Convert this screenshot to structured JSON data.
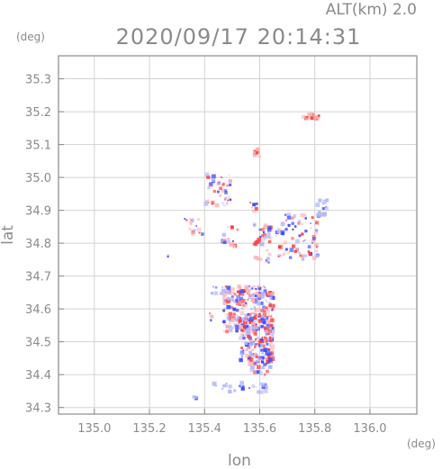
{
  "header": {
    "alt_label": "ALT(km) 2.0",
    "timestamp": "2020/09/17 20:14:31"
  },
  "axes": {
    "y_unit": "(deg)",
    "x_unit": "(deg)",
    "ylabel": "lat",
    "xlabel": "lon"
  },
  "colors": {
    "frame": "#8a8a8a",
    "grid": "#d2d2d2",
    "positive": "#ff3b3b",
    "positive_light": "#ffb3b3",
    "negative": "#3b48ff",
    "negative_light": "#b3b8ff"
  },
  "chart_data": {
    "type": "scatter",
    "xlim": [
      134.87,
      136.17
    ],
    "ylim": [
      34.28,
      35.37
    ],
    "x_ticks": [
      135.0,
      135.2,
      135.4,
      135.6,
      135.8,
      136.0
    ],
    "x_tick_labels": [
      "135.0",
      "135.2",
      "135.4",
      "135.6",
      "135.8",
      "136.0"
    ],
    "y_ticks": [
      34.3,
      34.4,
      34.5,
      34.6,
      34.7,
      34.8,
      34.9,
      35.0,
      35.1,
      35.2,
      35.3
    ],
    "y_tick_labels": [
      "34.3",
      "34.4",
      "34.5",
      "34.6",
      "34.7",
      "34.8",
      "34.9",
      "35.0",
      "35.1",
      "35.2",
      "35.3"
    ],
    "grid": true,
    "clusters": [
      {
        "lon": 135.79,
        "lat": 35.185,
        "w": 0.08,
        "h": 0.015,
        "n": 20,
        "tone": "pos"
      },
      {
        "lon": 135.59,
        "lat": 35.07,
        "w": 0.03,
        "h": 0.035,
        "n": 12,
        "tone": "pos"
      },
      {
        "lon": 135.45,
        "lat": 34.96,
        "w": 0.09,
        "h": 0.1,
        "n": 45,
        "tone": "mix"
      },
      {
        "lon": 135.36,
        "lat": 34.85,
        "w": 0.07,
        "h": 0.06,
        "n": 14,
        "tone": "mix"
      },
      {
        "lon": 135.27,
        "lat": 34.76,
        "w": 0.01,
        "h": 0.01,
        "n": 2,
        "tone": "neg"
      },
      {
        "lon": 135.58,
        "lat": 34.91,
        "w": 0.03,
        "h": 0.03,
        "n": 8,
        "tone": "mix"
      },
      {
        "lon": 135.49,
        "lat": 34.82,
        "w": 0.06,
        "h": 0.08,
        "n": 15,
        "tone": "mix"
      },
      {
        "lon": 135.61,
        "lat": 34.8,
        "w": 0.06,
        "h": 0.12,
        "n": 40,
        "tone": "mix"
      },
      {
        "lon": 135.74,
        "lat": 34.82,
        "w": 0.16,
        "h": 0.14,
        "n": 80,
        "tone": "mix"
      },
      {
        "lon": 135.83,
        "lat": 34.91,
        "w": 0.04,
        "h": 0.05,
        "n": 18,
        "tone": "neg"
      },
      {
        "lon": 135.56,
        "lat": 34.6,
        "w": 0.18,
        "h": 0.14,
        "n": 260,
        "tone": "mix"
      },
      {
        "lon": 135.59,
        "lat": 34.49,
        "w": 0.12,
        "h": 0.12,
        "n": 150,
        "tone": "mix"
      },
      {
        "lon": 135.45,
        "lat": 34.66,
        "w": 0.05,
        "h": 0.03,
        "n": 8,
        "tone": "neg"
      },
      {
        "lon": 135.6,
        "lat": 34.42,
        "w": 0.08,
        "h": 0.04,
        "n": 22,
        "tone": "mix"
      },
      {
        "lon": 135.53,
        "lat": 34.36,
        "w": 0.2,
        "h": 0.03,
        "n": 28,
        "tone": "neg"
      },
      {
        "lon": 135.36,
        "lat": 34.33,
        "w": 0.02,
        "h": 0.01,
        "n": 4,
        "tone": "neg"
      },
      {
        "lon": 135.42,
        "lat": 34.58,
        "w": 0.02,
        "h": 0.03,
        "n": 4,
        "tone": "mix"
      }
    ]
  }
}
